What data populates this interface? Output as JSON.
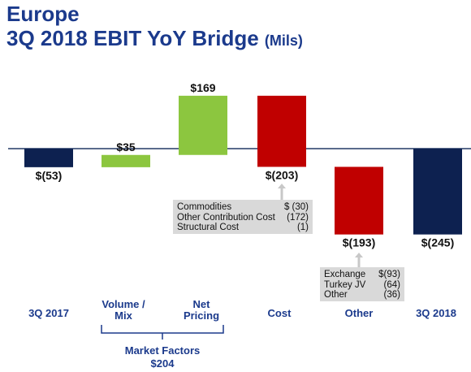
{
  "page": {
    "title_line1": "Europe",
    "title_line2": "3Q 2018 EBIT YoY Bridge",
    "title_unit": "(Mils)"
  },
  "chart_data": {
    "type": "bar",
    "subtype": "waterfall",
    "title": "3Q 2018 EBIT YoY Bridge",
    "unit": "Mils",
    "grid": false,
    "legend": "none",
    "categories": [
      "3Q 2017",
      "Volume / Mix",
      "Net Pricing",
      "Cost",
      "Other",
      "3Q 2018"
    ],
    "values": [
      -53,
      35,
      169,
      -203,
      -193,
      -245
    ],
    "labels": [
      "$(53)",
      "$35",
      "$169",
      "$(203)",
      "$(193)",
      "$(245)"
    ],
    "bar_kinds": [
      "total",
      "delta",
      "delta",
      "delta",
      "delta",
      "total"
    ],
    "colors": {
      "total": "#0d2150",
      "positive": "#8cc63f",
      "negative": "#c00000",
      "axis": "#243a66",
      "category_text": "#1b3a8c"
    },
    "group": {
      "name": "Market Factors",
      "value_label": "$204",
      "covers": [
        "Volume / Mix",
        "Net Pricing"
      ]
    },
    "annotations": [
      {
        "for": "Cost",
        "items": [
          {
            "label": "Commodities",
            "value": "$ (30)"
          },
          {
            "label": "Other Contribution Cost",
            "value": "(172)"
          },
          {
            "label": "Structural Cost",
            "value": "(1)"
          }
        ]
      },
      {
        "for": "Other",
        "items": [
          {
            "label": "Exchange",
            "value": "$(93)"
          },
          {
            "label": "Turkey JV",
            "value": "(64)"
          },
          {
            "label": "Other",
            "value": "(36)"
          }
        ]
      }
    ]
  }
}
